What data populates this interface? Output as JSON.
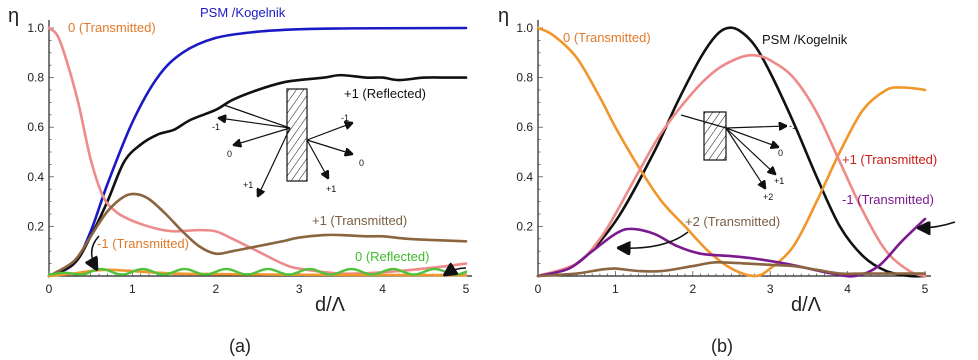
{
  "colors": {
    "blue": "#1a1ac4",
    "black": "#111111",
    "pink": "#ee8a8a",
    "brown": "#8b6440",
    "green": "#4ec23a",
    "orange": "#f0962a",
    "purple": "#7a1a8e",
    "orange_text": "#e07a2a",
    "red_text": "#c8201a",
    "brown_text": "#7a6045",
    "purple_text": "#7a1a8e",
    "blue_text": "#1a1ac4",
    "green_text": "#3fbb2a"
  },
  "chart_data": [
    {
      "type": "line",
      "panel_label": "(a)",
      "ylabel": "η",
      "xlabel": "d/Λ",
      "xlim": [
        0,
        5
      ],
      "ylim": [
        0,
        1
      ],
      "xticks": [
        0,
        1,
        2,
        3,
        4,
        5
      ],
      "yticks": [
        0.2,
        0.4,
        0.6,
        0.8,
        1.0
      ],
      "ytick_labels": [
        "0.2",
        "0.4",
        "0.6",
        "0.8",
        "1.0"
      ],
      "grid": false,
      "series": [
        {
          "name": "PSM /Kogelnik",
          "color": "blue",
          "points": [
            [
              0,
              0
            ],
            [
              0.3,
              0.05
            ],
            [
              0.5,
              0.18
            ],
            [
              0.7,
              0.37
            ],
            [
              1.0,
              0.62
            ],
            [
              1.3,
              0.8
            ],
            [
              1.6,
              0.9
            ],
            [
              2.0,
              0.96
            ],
            [
              2.5,
              0.985
            ],
            [
              3.0,
              0.995
            ],
            [
              3.5,
              0.998
            ],
            [
              4.0,
              0.999
            ],
            [
              5.0,
              1.0
            ]
          ]
        },
        {
          "name": "+1 (Reflected)",
          "color": "black",
          "points": [
            [
              0,
              0
            ],
            [
              0.3,
              0.05
            ],
            [
              0.5,
              0.16
            ],
            [
              0.7,
              0.3
            ],
            [
              0.9,
              0.46
            ],
            [
              1.1,
              0.53
            ],
            [
              1.3,
              0.57
            ],
            [
              1.5,
              0.59
            ],
            [
              1.7,
              0.63
            ],
            [
              2.0,
              0.67
            ],
            [
              2.2,
              0.71
            ],
            [
              2.5,
              0.75
            ],
            [
              2.8,
              0.78
            ],
            [
              3.0,
              0.79
            ],
            [
              3.3,
              0.8
            ],
            [
              3.5,
              0.81
            ],
            [
              3.8,
              0.8
            ],
            [
              4.0,
              0.8
            ],
            [
              4.2,
              0.79
            ],
            [
              4.5,
              0.8
            ],
            [
              4.8,
              0.8
            ],
            [
              5.0,
              0.8
            ]
          ]
        },
        {
          "name": "0 (Transmitted)",
          "color": "pink",
          "points": [
            [
              0,
              1.0
            ],
            [
              0.1,
              0.97
            ],
            [
              0.2,
              0.88
            ],
            [
              0.35,
              0.7
            ],
            [
              0.5,
              0.47
            ],
            [
              0.65,
              0.32
            ],
            [
              0.8,
              0.26
            ],
            [
              0.95,
              0.23
            ],
            [
              1.1,
              0.21
            ],
            [
              1.3,
              0.19
            ],
            [
              1.5,
              0.18
            ],
            [
              1.8,
              0.185
            ],
            [
              2.0,
              0.18
            ],
            [
              2.2,
              0.15
            ],
            [
              2.5,
              0.1
            ],
            [
              2.8,
              0.05
            ],
            [
              3.0,
              0.03
            ],
            [
              3.5,
              0.01
            ],
            [
              4.0,
              0.015
            ],
            [
              4.5,
              0.03
            ],
            [
              5.0,
              0.05
            ]
          ]
        },
        {
          "name": "+1 (Transmitted)",
          "color": "brown",
          "points": [
            [
              0,
              0
            ],
            [
              0.3,
              0.06
            ],
            [
              0.5,
              0.16
            ],
            [
              0.7,
              0.26
            ],
            [
              0.9,
              0.32
            ],
            [
              1.05,
              0.33
            ],
            [
              1.2,
              0.31
            ],
            [
              1.4,
              0.25
            ],
            [
              1.6,
              0.18
            ],
            [
              1.8,
              0.12
            ],
            [
              2.0,
              0.09
            ],
            [
              2.2,
              0.1
            ],
            [
              2.5,
              0.12
            ],
            [
              2.8,
              0.14
            ],
            [
              3.0,
              0.155
            ],
            [
              3.3,
              0.165
            ],
            [
              3.5,
              0.165
            ],
            [
              3.8,
              0.16
            ],
            [
              4.0,
              0.16
            ],
            [
              4.3,
              0.15
            ],
            [
              4.6,
              0.145
            ],
            [
              5.0,
              0.14
            ]
          ]
        },
        {
          "name": "-1 (Transmitted)",
          "color": "orange",
          "points": [
            [
              0,
              0
            ],
            [
              0.3,
              0.01
            ],
            [
              0.5,
              0.02
            ],
            [
              0.7,
              0.025
            ],
            [
              1.0,
              0.02
            ],
            [
              1.5,
              0.01
            ],
            [
              2.0,
              0.008
            ],
            [
              3.0,
              0.005
            ],
            [
              4.0,
              0.004
            ],
            [
              5.0,
              0.003
            ]
          ]
        },
        {
          "name": "0 (Reflected)",
          "color": "green",
          "oscillating": true,
          "amplitude": 0.022,
          "cycles": 10,
          "points": [
            [
              0,
              0
            ],
            [
              0.3,
              0.005
            ],
            [
              5.0,
              0.005
            ]
          ]
        }
      ],
      "annotations": [
        {
          "text": "PSM /Kogelnik",
          "color": "blue_text"
        },
        {
          "text": "0 (Transmitted)",
          "color": "orange_text"
        },
        {
          "text": "+1 (Reflected)",
          "color": "black"
        },
        {
          "text": "+1 (Transmitted)",
          "color": "brown_text"
        },
        {
          "text": "-1 (Transmitted)",
          "color": "orange_text"
        },
        {
          "text": "0 (Reflected)",
          "color": "green_text"
        }
      ],
      "inset_labels": [
        "-1",
        "0",
        "+1",
        "-1",
        "0",
        "+1"
      ]
    },
    {
      "type": "line",
      "panel_label": "(b)",
      "ylabel": "η",
      "xlabel": "d/Λ",
      "xlim": [
        0,
        5
      ],
      "ylim": [
        0,
        1
      ],
      "xticks": [
        0,
        1,
        2,
        3,
        4,
        5
      ],
      "yticks": [
        0.2,
        0.4,
        0.6,
        0.8,
        1.0
      ],
      "ytick_labels": [
        "0.2",
        "0.4",
        "0.6",
        "0.8",
        "1.0"
      ],
      "grid": false,
      "series": [
        {
          "name": "PSM /Kogelnik",
          "color": "black",
          "points": [
            [
              0,
              0
            ],
            [
              0.5,
              0.05
            ],
            [
              1.0,
              0.22
            ],
            [
              1.5,
              0.5
            ],
            [
              1.8,
              0.7
            ],
            [
              2.1,
              0.88
            ],
            [
              2.3,
              0.97
            ],
            [
              2.45,
              1.0
            ],
            [
              2.6,
              0.99
            ],
            [
              2.8,
              0.93
            ],
            [
              3.0,
              0.82
            ],
            [
              3.3,
              0.62
            ],
            [
              3.6,
              0.4
            ],
            [
              3.9,
              0.2
            ],
            [
              4.2,
              0.08
            ],
            [
              4.5,
              0.02
            ],
            [
              4.8,
              0.0
            ],
            [
              5.0,
              0.0
            ]
          ]
        },
        {
          "name": "0 (Transmitted)",
          "color": "orange",
          "points": [
            [
              0,
              1.0
            ],
            [
              0.2,
              0.97
            ],
            [
              0.5,
              0.88
            ],
            [
              0.8,
              0.72
            ],
            [
              1.0,
              0.6
            ],
            [
              1.3,
              0.44
            ],
            [
              1.6,
              0.3
            ],
            [
              1.9,
              0.2
            ],
            [
              2.2,
              0.1
            ],
            [
              2.5,
              0.03
            ],
            [
              2.8,
              0.0
            ],
            [
              3.0,
              0.03
            ],
            [
              3.3,
              0.12
            ],
            [
              3.6,
              0.3
            ],
            [
              3.9,
              0.5
            ],
            [
              4.2,
              0.67
            ],
            [
              4.5,
              0.75
            ],
            [
              4.7,
              0.76
            ],
            [
              4.9,
              0.755
            ],
            [
              5.0,
              0.75
            ]
          ]
        },
        {
          "name": "pink",
          "color": "pink",
          "points": [
            [
              0,
              0
            ],
            [
              0.5,
              0.05
            ],
            [
              0.8,
              0.15
            ],
            [
              1.0,
              0.25
            ],
            [
              1.3,
              0.42
            ],
            [
              1.6,
              0.58
            ],
            [
              2.0,
              0.74
            ],
            [
              2.3,
              0.83
            ],
            [
              2.6,
              0.88
            ],
            [
              2.8,
              0.89
            ],
            [
              3.0,
              0.87
            ],
            [
              3.3,
              0.8
            ],
            [
              3.6,
              0.66
            ],
            [
              3.9,
              0.46
            ],
            [
              4.2,
              0.26
            ],
            [
              4.5,
              0.1
            ],
            [
              4.8,
              0.02
            ],
            [
              5.0,
              0.0
            ]
          ]
        },
        {
          "name": "-1 (Transmitted)",
          "color": "purple",
          "points": [
            [
              0,
              0
            ],
            [
              0.4,
              0.03
            ],
            [
              0.7,
              0.1
            ],
            [
              1.0,
              0.17
            ],
            [
              1.2,
              0.19
            ],
            [
              1.5,
              0.17
            ],
            [
              1.8,
              0.12
            ],
            [
              2.1,
              0.09
            ],
            [
              2.5,
              0.08
            ],
            [
              2.8,
              0.07
            ],
            [
              3.2,
              0.05
            ],
            [
              3.5,
              0.03
            ],
            [
              3.8,
              0.01
            ],
            [
              4.1,
              0.0
            ],
            [
              4.4,
              0.04
            ],
            [
              4.7,
              0.14
            ],
            [
              5.0,
              0.23
            ]
          ]
        },
        {
          "name": "+2 (Transmitted)",
          "color": "brown",
          "points": [
            [
              0,
              0
            ],
            [
              0.5,
              0.01
            ],
            [
              0.8,
              0.025
            ],
            [
              1.0,
              0.03
            ],
            [
              1.3,
              0.02
            ],
            [
              1.6,
              0.02
            ],
            [
              2.0,
              0.04
            ],
            [
              2.3,
              0.055
            ],
            [
              2.7,
              0.05
            ],
            [
              3.0,
              0.045
            ],
            [
              3.3,
              0.04
            ],
            [
              3.6,
              0.025
            ],
            [
              3.9,
              0.01
            ],
            [
              4.2,
              0.01
            ],
            [
              4.6,
              0.01
            ],
            [
              5.0,
              0.01
            ]
          ]
        }
      ],
      "annotations": [
        {
          "text": "0 (Transmitted)",
          "color": "orange_text"
        },
        {
          "text": "PSM /Kogelnik",
          "color": "black"
        },
        {
          "text": "+1 (Transmitted)",
          "color": "red_text"
        },
        {
          "text": "-1 (Transmitted)",
          "color": "purple_text"
        },
        {
          "text": "+2 (Transmitted)",
          "color": "brown_text"
        }
      ],
      "inset_labels": [
        "-1",
        "0",
        "+1",
        "+2"
      ]
    }
  ]
}
